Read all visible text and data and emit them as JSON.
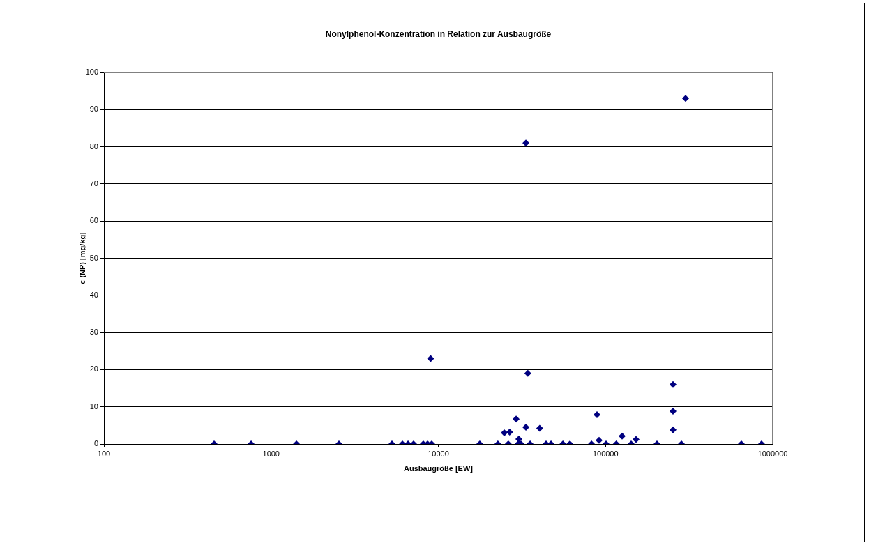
{
  "chart_data": {
    "type": "scatter",
    "title": "Nonylphenol-Konzentration in Relation zur Ausbaugröße",
    "xlabel": "Ausbaugröße [EW]",
    "ylabel": "c (NP) [mg/kg]",
    "log": "x",
    "grid": "y",
    "legend": false,
    "marker": "diamond",
    "xlim": [
      100,
      1000000
    ],
    "xticks": [
      100,
      1000,
      10000,
      100000,
      1000000
    ],
    "ylim": [
      0,
      100
    ],
    "yticks": [
      0,
      10,
      20,
      30,
      40,
      50,
      60,
      70,
      80,
      90,
      100
    ],
    "series": [
      {
        "color": "#000080",
        "x": [
          456,
          759,
          1417,
          2545,
          5280,
          6100,
          6590,
          7110,
          8130,
          8620,
          9130,
          9000,
          17700,
          22700,
          24800,
          26200,
          26700,
          29200,
          30000,
          30300,
          31200,
          33400,
          33400,
          34300,
          35400,
          40400,
          44100,
          47200,
          55600,
          61200,
          82400,
          88900,
          91500,
          100700,
          116000,
          125600,
          142300,
          152200,
          203000,
          253300,
          253300,
          253300,
          284400,
          301000,
          649000,
          857000
        ],
        "values": [
          0,
          0,
          0,
          0,
          0,
          0,
          0,
          0,
          0,
          0,
          0,
          23,
          0,
          0,
          3,
          0,
          3.2,
          6.7,
          0,
          1.3,
          0,
          4.5,
          81,
          19,
          0,
          4.2,
          0,
          0,
          0,
          0,
          0,
          7.9,
          1,
          0,
          0,
          2.1,
          0,
          1.2,
          0,
          16,
          8.8,
          3.8,
          0,
          93,
          0,
          0
        ]
      }
    ]
  }
}
